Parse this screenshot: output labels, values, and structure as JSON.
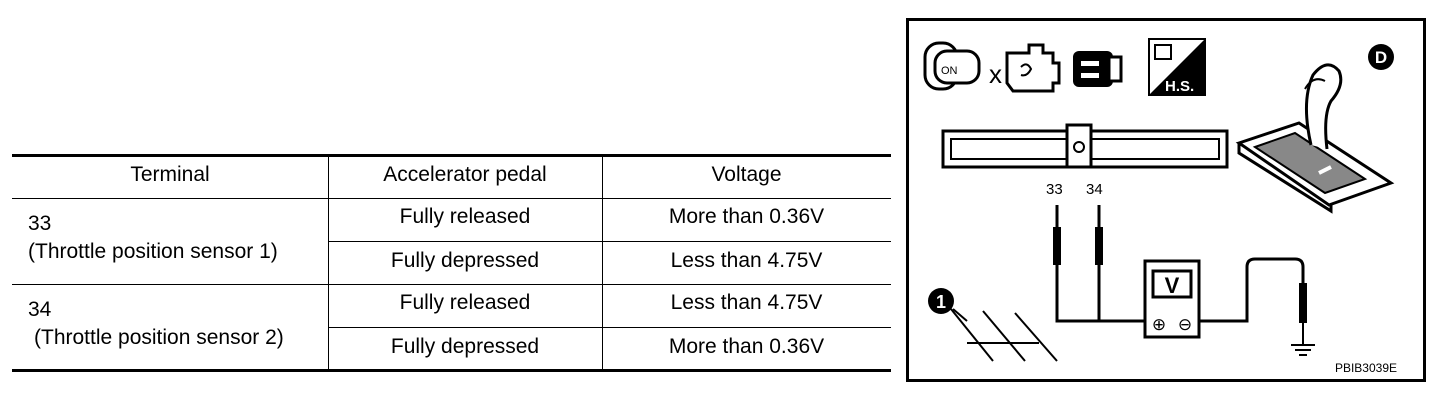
{
  "table": {
    "headers": [
      "Terminal",
      "Accelerator pedal",
      "Voltage"
    ],
    "groups": [
      {
        "terminal_number": "33",
        "terminal_desc": "(Throttle position sensor 1)",
        "rows": [
          {
            "pedal": "Fully released",
            "voltage": "More than 0.36V"
          },
          {
            "pedal": "Fully depressed",
            "voltage": "Less than 4.75V"
          }
        ]
      },
      {
        "terminal_number": "34",
        "terminal_desc": "(Throttle position sensor 2)",
        "rows": [
          {
            "pedal": "Fully released",
            "voltage": "Less than 4.75V"
          },
          {
            "pedal": "Fully depressed",
            "voltage": "More than 0.36V"
          }
        ]
      }
    ]
  },
  "figure": {
    "icons": {
      "ignition_label": "ON",
      "hs_label": "H.S.",
      "d_badge": "D",
      "callout": "1"
    },
    "terminal_labels": [
      "33",
      "34"
    ],
    "meter_label": "V",
    "plus_symbol": "⊕",
    "minus_symbol": "⊖",
    "figure_code": "PBIB3039E"
  }
}
